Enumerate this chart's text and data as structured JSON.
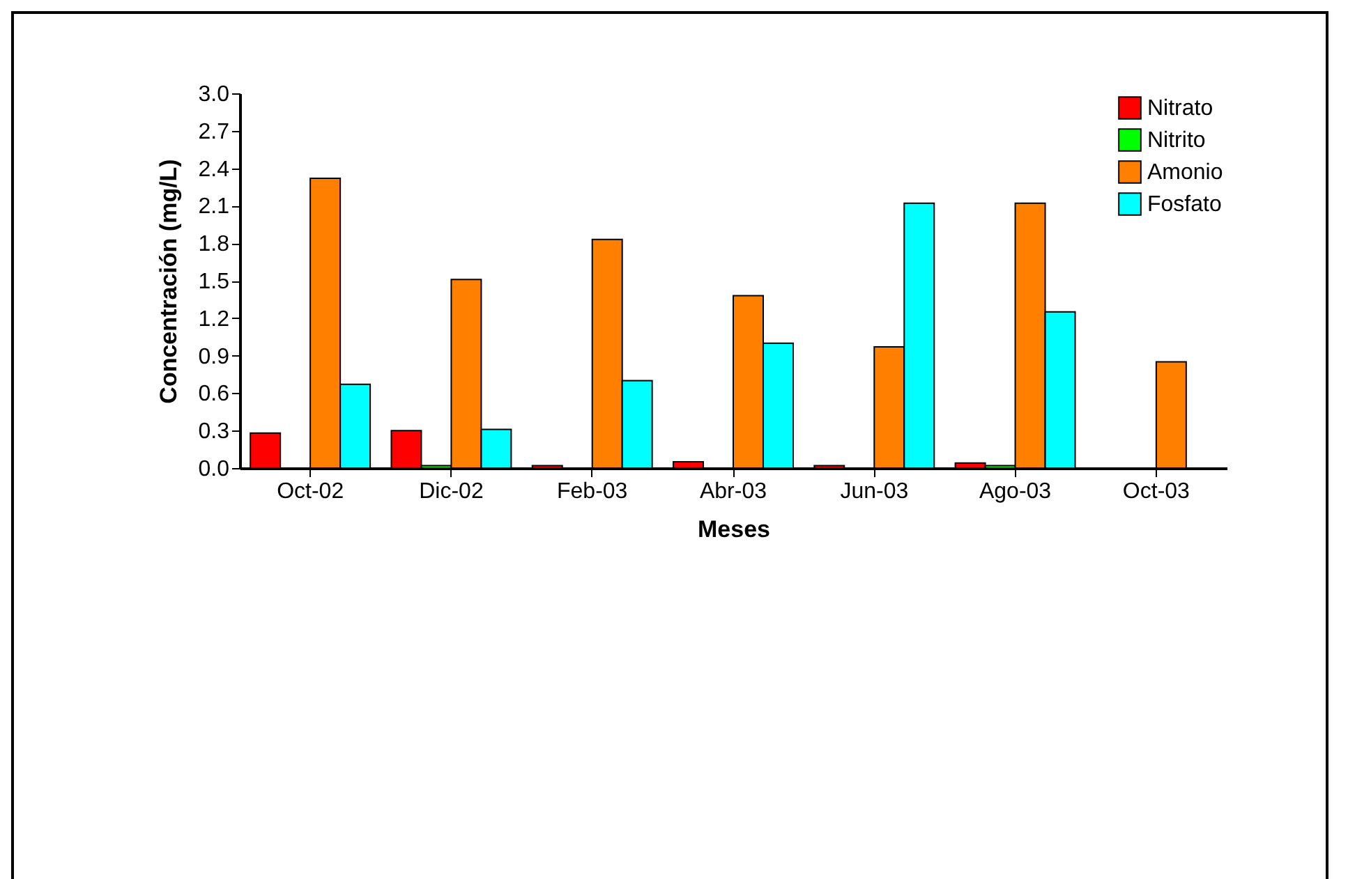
{
  "chart_data": {
    "type": "bar",
    "xlabel": "Meses",
    "ylabel": "Concentración (mg/L)",
    "categories": [
      "Oct-02",
      "Dic-02",
      "Feb-03",
      "Abr-03",
      "Jun-03",
      "Ago-03",
      "Oct-03"
    ],
    "series": [
      {
        "name": "Nitrato",
        "color": "#ff0000",
        "values": [
          0.28,
          0.3,
          0.02,
          0.05,
          0.02,
          0.04,
          null
        ]
      },
      {
        "name": "Nitrito",
        "color": "#00ff00",
        "values": [
          null,
          0.02,
          null,
          null,
          null,
          0.02,
          null
        ]
      },
      {
        "name": "Amonio",
        "color": "#ff8000",
        "values": [
          2.32,
          1.51,
          1.83,
          1.38,
          0.97,
          2.12,
          0.85
        ]
      },
      {
        "name": "Fosfato",
        "color": "#00ffff",
        "values": [
          0.67,
          0.31,
          0.7,
          1.0,
          2.12,
          1.25,
          null
        ]
      }
    ],
    "ylim": [
      0,
      3.0
    ],
    "yticks": [
      {
        "value": 0,
        "label": "0.0"
      },
      0.3,
      0.6,
      0.9,
      1.2,
      1.5,
      1.8,
      2.1,
      2.4,
      2.7,
      {
        "value": 3,
        "label": "3.0"
      }
    ],
    "grid": false,
    "legend": "top right"
  }
}
